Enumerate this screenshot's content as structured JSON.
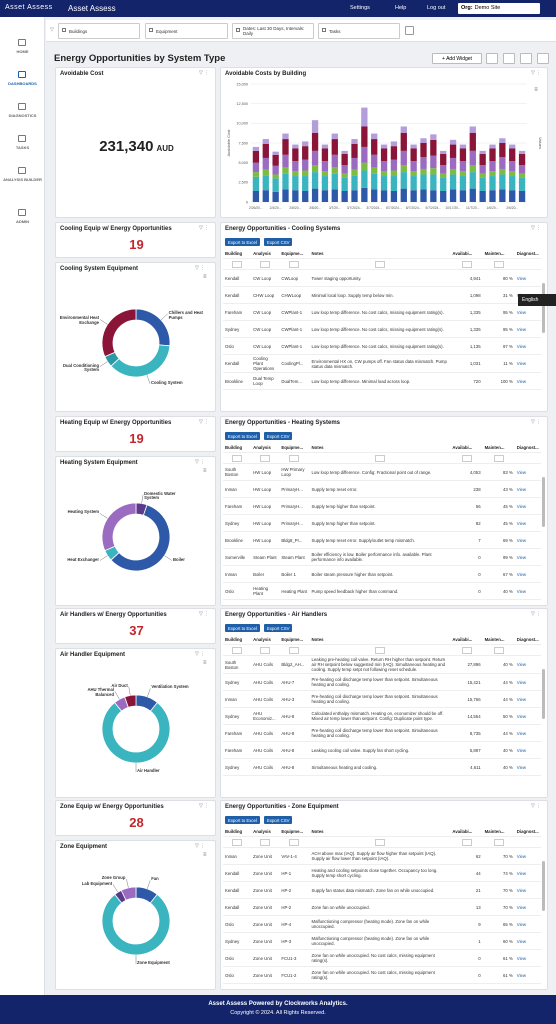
{
  "nav": {
    "logo": "Asset Assess",
    "app_name": "Asset Assess",
    "links": [
      "Settings",
      "Help",
      "Log out"
    ],
    "org_label": "Org:",
    "org": "Demo Site"
  },
  "sidebar": [
    "HOME",
    "DASHBOARDS",
    "DIAGNOSTICS",
    "TASKS",
    "ANALYSIS BUILDER",
    "ADMIN"
  ],
  "filters": [
    "Buildings",
    "Equipment",
    "Dates: Last 30 Days, Intervals: Daily",
    "Tasks"
  ],
  "page_title": "Energy Opportunities by System Type",
  "add_widget": "+ Add Widget",
  "avoidable_cost": {
    "title": "Avoidable Cost",
    "value": "231,340",
    "unit": "AUD"
  },
  "chart_data": [
    {
      "type": "bar",
      "title": "Avoidable Costs by Building",
      "y_label": "Avoidable Cost",
      "y2_label": "Values",
      "categories": [
        "2/26/20...",
        null,
        "2/4/20...",
        null,
        "2/8/20...",
        null,
        "3/8/20...",
        null,
        "3/7/20...",
        null,
        "3/7/2024...",
        null,
        "3/7/2024...",
        null,
        "8/7/2024...",
        null,
        "8/7/2024...",
        null,
        "5/7/2024...",
        null,
        "10/17/20...",
        null,
        "11/7/20...",
        null,
        "1/6/20...",
        null,
        "2/6/20...",
        null
      ],
      "ylim": [
        0,
        15000
      ],
      "yticks": [
        0,
        {
          "value": 2500,
          "label": "2,500"
        },
        {
          "value": 5000,
          "label": "5,000"
        },
        {
          "value": 7500,
          "label": "7,500"
        },
        {
          "value": 10000,
          "label": "10,000"
        },
        {
          "value": 12500,
          "label": "12,500"
        },
        {
          "value": 15000,
          "label": "15,000"
        }
      ],
      "grid": true,
      "stacked": true,
      "series": [
        {
          "color": "#2e59a8",
          "values": [
            1400,
            1500,
            1300,
            1600,
            1500,
            1400,
            1700,
            1500,
            1600,
            1400,
            1500,
            1800,
            1600,
            1500,
            1400,
            1700,
            1500,
            1600,
            1500,
            1400,
            1600,
            1500,
            1700,
            1400,
            1500,
            1600,
            1500,
            1400
          ]
        },
        {
          "color": "#3ab5c0",
          "values": [
            1800,
            1900,
            1700,
            2000,
            1800,
            1900,
            2100,
            1800,
            2000,
            1700,
            1900,
            2200,
            2000,
            1800,
            1900,
            2100,
            1800,
            1900,
            2000,
            1700,
            1900,
            1800,
            2100,
            1700,
            1800,
            1900,
            1800,
            1700
          ]
        },
        {
          "color": "#7dbb42",
          "values": [
            600,
            700,
            500,
            800,
            600,
            700,
            900,
            600,
            800,
            500,
            700,
            1000,
            800,
            600,
            700,
            900,
            600,
            700,
            800,
            500,
            700,
            600,
            900,
            500,
            600,
            700,
            600,
            500
          ]
        },
        {
          "color": "#9a6bc1",
          "values": [
            1200,
            1500,
            1100,
            1600,
            1300,
            1400,
            1800,
            1300,
            1600,
            1100,
            1500,
            2000,
            1600,
            1300,
            1400,
            1800,
            1300,
            1500,
            1600,
            1100,
            1400,
            1300,
            1800,
            1100,
            1300,
            1500,
            1300,
            1100
          ]
        },
        {
          "color": "#8a1538",
          "values": [
            1500,
            1800,
            1400,
            2000,
            1600,
            1700,
            2300,
            1600,
            2000,
            1400,
            1800,
            2600,
            2000,
            1600,
            1700,
            2300,
            1600,
            1800,
            2000,
            1400,
            1700,
            1600,
            2300,
            1400,
            1600,
            1800,
            1600,
            1400
          ]
        },
        {
          "color": "#b39ddb",
          "values": [
            500,
            600,
            400,
            700,
            500,
            600,
            1600,
            500,
            700,
            400,
            600,
            2400,
            700,
            500,
            600,
            800,
            500,
            600,
            700,
            400,
            600,
            500,
            800,
            400,
            500,
            600,
            500,
            400
          ]
        }
      ]
    },
    {
      "type": "pie",
      "donut": true,
      "title": "Cooling System Equipment",
      "categories": [
        "Chillers and Heat Pumps",
        "Cooling System",
        "Dual Conditioning System",
        "Environmental Heat Exchange"
      ],
      "values": [
        5,
        7,
        1,
        6
      ],
      "colors": [
        "#2e59a8",
        "#3ab5c0",
        "#2a9aa5",
        "#8a1538"
      ]
    },
    {
      "type": "pie",
      "donut": true,
      "title": "Heating System Equipment",
      "categories": [
        "Domestic Water System",
        "Boiler",
        "Heat Exchanger",
        "Heating System"
      ],
      "values": [
        1,
        11,
        1,
        6
      ],
      "colors": [
        "#5b3a8c",
        "#2e59a8",
        "#3ab5c0",
        "#9a6bc1"
      ]
    },
    {
      "type": "pie",
      "donut": true,
      "title": "Air Handler Equipment",
      "categories": [
        "Ventilation System",
        "Air Handler",
        "AHU Thermal Balanced",
        "Air Duct"
      ],
      "values": [
        4,
        29,
        2,
        2
      ],
      "colors": [
        "#2e59a8",
        "#3ab5c0",
        "#9a6bc1",
        "#8a1538"
      ]
    },
    {
      "type": "pie",
      "donut": true,
      "title": "Zone Equipment",
      "categories": [
        "Fan",
        "Zone Equipment",
        "Lab Equipment",
        "Zone Group"
      ],
      "values": [
        3,
        22,
        1,
        2
      ],
      "colors": [
        "#2e59a8",
        "#3ab5c0",
        "#5b3a8c",
        "#9a6bc1"
      ]
    }
  ],
  "export_buttons": [
    "Export to Excel",
    "Export CSV"
  ],
  "columns": [
    "Building",
    "Analysis",
    "Equipme...",
    "Notes",
    "Availabi...",
    "Mainten...",
    "Diagnost..."
  ],
  "view_link": "View",
  "language_tooltip": "English",
  "sections": [
    {
      "count_title": "Cooling Equip w/ Energy Opportunities",
      "count": 19,
      "table_title": "Energy Opportunities - Cooling Systems",
      "rows": [
        [
          "Kendall",
          "CW Loop",
          "CWLoop",
          "Tower staging opportunity.",
          "4,941",
          "80 %"
        ],
        [
          "Kendall",
          "CHW Loop",
          "CHWLoop",
          "Minimal local loop. Supply temp below min.",
          "1,098",
          "31 %"
        ],
        [
          "Fareham",
          "CW Loop",
          "CWPlant-1",
          "Low loop temp difference. No cost calcs, missing equipment rating(s).",
          "1,335",
          "95 %"
        ],
        [
          "Sydney",
          "CW Loop",
          "CWPlant-1",
          "Low loop temp difference. No cost calcs, missing equipment rating(s).",
          "1,335",
          "95 %"
        ],
        [
          "Oslo",
          "CW Loop",
          "CWPlant-1",
          "Low loop temp difference. No cost calcs, missing equipment rating(s).",
          "1,135",
          "97 %"
        ],
        [
          "Kendall",
          "Cooling Plant Operations",
          "CoolingPl...",
          "Environmental HX on, CW pumps off. Fan status data mismatch. Pump status data mismatch.",
          "1,031",
          "11 %"
        ],
        [
          "Brookline",
          "Dual Temp Loop",
          "DualTem...",
          "Low loop temp difference. Minimal load across loop.",
          "720",
          "100 %"
        ]
      ]
    },
    {
      "count_title": "Heating Equip w/ Energy Opportunities",
      "count": 19,
      "table_title": "Energy Opportunities - Heating Systems",
      "rows": [
        [
          "South Boston",
          "HW Loop",
          "HW Primary Loop",
          "Low loop temp difference. Config: Fractional point out of range.",
          "4,053",
          "83 %"
        ],
        [
          "Inman",
          "HW Loop",
          "PrimaryH...",
          "Supply temp reset error.",
          "238",
          "43 %"
        ],
        [
          "Fareham",
          "HW Loop",
          "PrimaryH...",
          "Supply temp higher than setpoint.",
          "56",
          "45 %"
        ],
        [
          "Sydney",
          "HW Loop",
          "PrimaryH...",
          "Supply temp higher than setpoint.",
          "82",
          "45 %"
        ],
        [
          "Brookline",
          "HW Loop",
          "Bldg8_Pr...",
          "Supply temp reset error. Supply/outlet temp mismatch.",
          "7",
          "69 %"
        ],
        [
          "Somerville",
          "Steam Plant",
          "Steam Plant",
          "Boiler efficiency is low. Boiler performance info. available. Plant performance info available.",
          "0",
          "99 %"
        ],
        [
          "Inman",
          "Boiler",
          "Boiler 1",
          "Boiler steam pressure higher than setpoint.",
          "0",
          "67 %"
        ],
        [
          "Oslo",
          "Heating Plant",
          "Heating Plant",
          "Pump speed feedback higher than command.",
          "0",
          "40 %"
        ]
      ]
    },
    {
      "count_title": "Air Handlers w/ Energy Opportunities",
      "count": 37,
      "table_title": "Energy Opportunities - Air Handlers",
      "rows": [
        [
          "South Boston",
          "AHU Coils",
          "Bldg2_AH...",
          "Leaking pre-heating coil valve. Return RH higher than setpoint. Return air RH setpoint below suggested min (IAQ). Simultaneous heating and cooling. Supply temp setpt not following reset schedule.",
          "27,896",
          "40 %"
        ],
        [
          "Sydney",
          "AHU Coils",
          "AHU-7",
          "Pre-heating coil discharge temp lower than setpoint. Simultaneous heating and cooling.",
          "15,421",
          "44 %"
        ],
        [
          "Inman",
          "AHU Coils",
          "AHU-3",
          "Pre-heating coil discharge temp lower than setpoint. Simultaneous heating and cooling.",
          "15,766",
          "44 %"
        ],
        [
          "Sydney",
          "AHU Economiz...",
          "AHU-8",
          "Calculated enthalpy mismatch. Heating on, economizer should be off. Mixed air temp lower than setpoint. Config: Duplicate point type.",
          "14,554",
          "50 %"
        ],
        [
          "Fareham",
          "AHU Coils",
          "AHU-8",
          "Pre-heating coil discharge temp lower than setpoint. Simultaneous heating and cooling.",
          "8,735",
          "44 %"
        ],
        [
          "Fareham",
          "AHU Coils",
          "AHU-8",
          "Leaking cooling coil valve. Supply fan short cycling.",
          "5,897",
          "40 %"
        ],
        [
          "Sydney",
          "AHU Coils",
          "AHU-8",
          "Simultaneous heating and cooling.",
          "4,611",
          "40 %"
        ]
      ]
    },
    {
      "count_title": "Zone Equip w/ Energy Opportunities",
      "count": 28,
      "table_title": "Energy Opportunities - Zone Equipment",
      "rows": [
        [
          "Inman",
          "Zone Unit",
          "VAV-1-4",
          "ACH above max (IAQ). Supply air flow higher than setpoint (IAQ). Supply air flow lower than setpoint (IAQ).",
          "62",
          "70 %"
        ],
        [
          "Kendall",
          "Zone Unit",
          "HP-1",
          "Heating and cooling setpoints close together. Occupancy too long. Supply temp short cycling.",
          "44",
          "74 %"
        ],
        [
          "Kendall",
          "Zone Unit",
          "HP-2",
          "Supply fan status data mismatch. Zone fan on while unoccupied.",
          "21",
          "70 %"
        ],
        [
          "Kendall",
          "Zone Unit",
          "HP-2",
          "Zone fan on while unoccupied.",
          "13",
          "70 %"
        ],
        [
          "Oslo",
          "Zone Unit",
          "HP-4",
          "Malfunctioning compressor (heating mode). Zone fan on while unoccupied.",
          "9",
          "65 %"
        ],
        [
          "Sydney",
          "Zone Unit",
          "HP-3",
          "Malfunctioning compressor (heating mode). Zone fan on while unoccupied.",
          "1",
          "60 %"
        ],
        [
          "Oslo",
          "Zone Unit",
          "FCU1-3",
          "Zone fan on while unoccupied. No cost calcs, missing equipment rating(s).",
          "0",
          "61 %"
        ],
        [
          "Oslo",
          "Zone Unit",
          "FCU1-2",
          "Zone fan on while unoccupied. No cost calcs, missing equipment rating(s).",
          "0",
          "61 %"
        ]
      ]
    }
  ],
  "footer": {
    "line1": "Asset Assess Powered by Clockworks Analytics.",
    "line2": "Copyright © 2024. All Rights Reserved."
  }
}
